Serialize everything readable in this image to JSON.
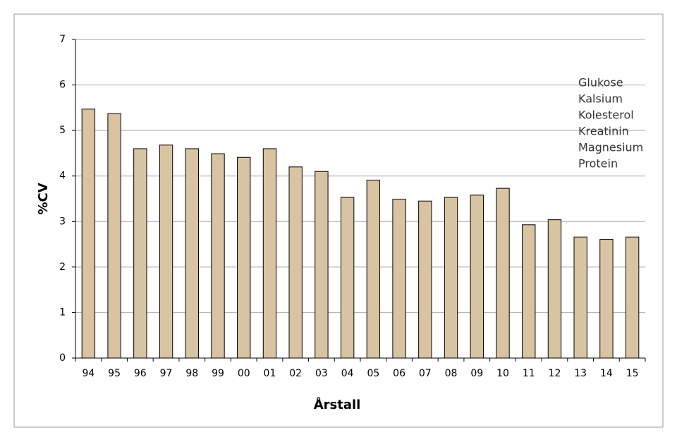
{
  "chart_data": {
    "type": "bar",
    "x_label": "Årstall",
    "y_label": "%CV",
    "categories": [
      "94",
      "95",
      "96",
      "97",
      "98",
      "99",
      "00",
      "01",
      "02",
      "03",
      "04",
      "05",
      "06",
      "07",
      "08",
      "09",
      "10",
      "11",
      "12",
      "13",
      "14",
      "15"
    ],
    "values": [
      5.47,
      5.37,
      4.6,
      4.68,
      4.6,
      4.49,
      4.41,
      4.6,
      4.2,
      4.1,
      3.53,
      3.91,
      3.49,
      3.45,
      3.53,
      3.58,
      3.73,
      2.93,
      3.04,
      2.66,
      2.61,
      2.66
    ],
    "color": "#d8c3a2",
    "ylim": [
      0,
      7
    ],
    "yticks": [
      0,
      1,
      2,
      3,
      4,
      5,
      6,
      7
    ],
    "grid": true,
    "annotations": [
      "Glukose",
      "Kalsium",
      "Kolesterol",
      "Kreatinin",
      "Magnesium",
      "Protein"
    ]
  }
}
